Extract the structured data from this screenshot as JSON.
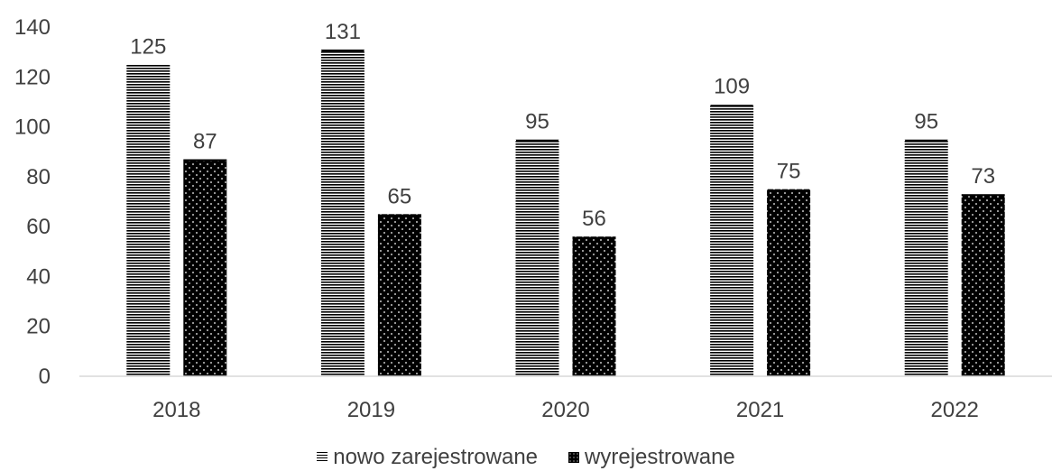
{
  "chart_data": {
    "type": "bar",
    "title": "",
    "xlabel": "",
    "ylabel": "",
    "categories": [
      "2018",
      "2019",
      "2020",
      "2021",
      "2022"
    ],
    "series": [
      {
        "name": "nowo zarejestrowane",
        "values": [
          125,
          131,
          95,
          109,
          95
        ],
        "pattern": "horizontal-stripes",
        "color": "#000000"
      },
      {
        "name": "wyrejestrowane",
        "values": [
          87,
          65,
          56,
          75,
          73
        ],
        "pattern": "white-dots-on-black",
        "color": "#000000"
      }
    ],
    "ylim": [
      0,
      140
    ],
    "yticks": [
      0,
      20,
      40,
      60,
      80,
      100,
      120,
      140
    ],
    "grid": false,
    "legend_position": "bottom",
    "data_labels": true
  }
}
